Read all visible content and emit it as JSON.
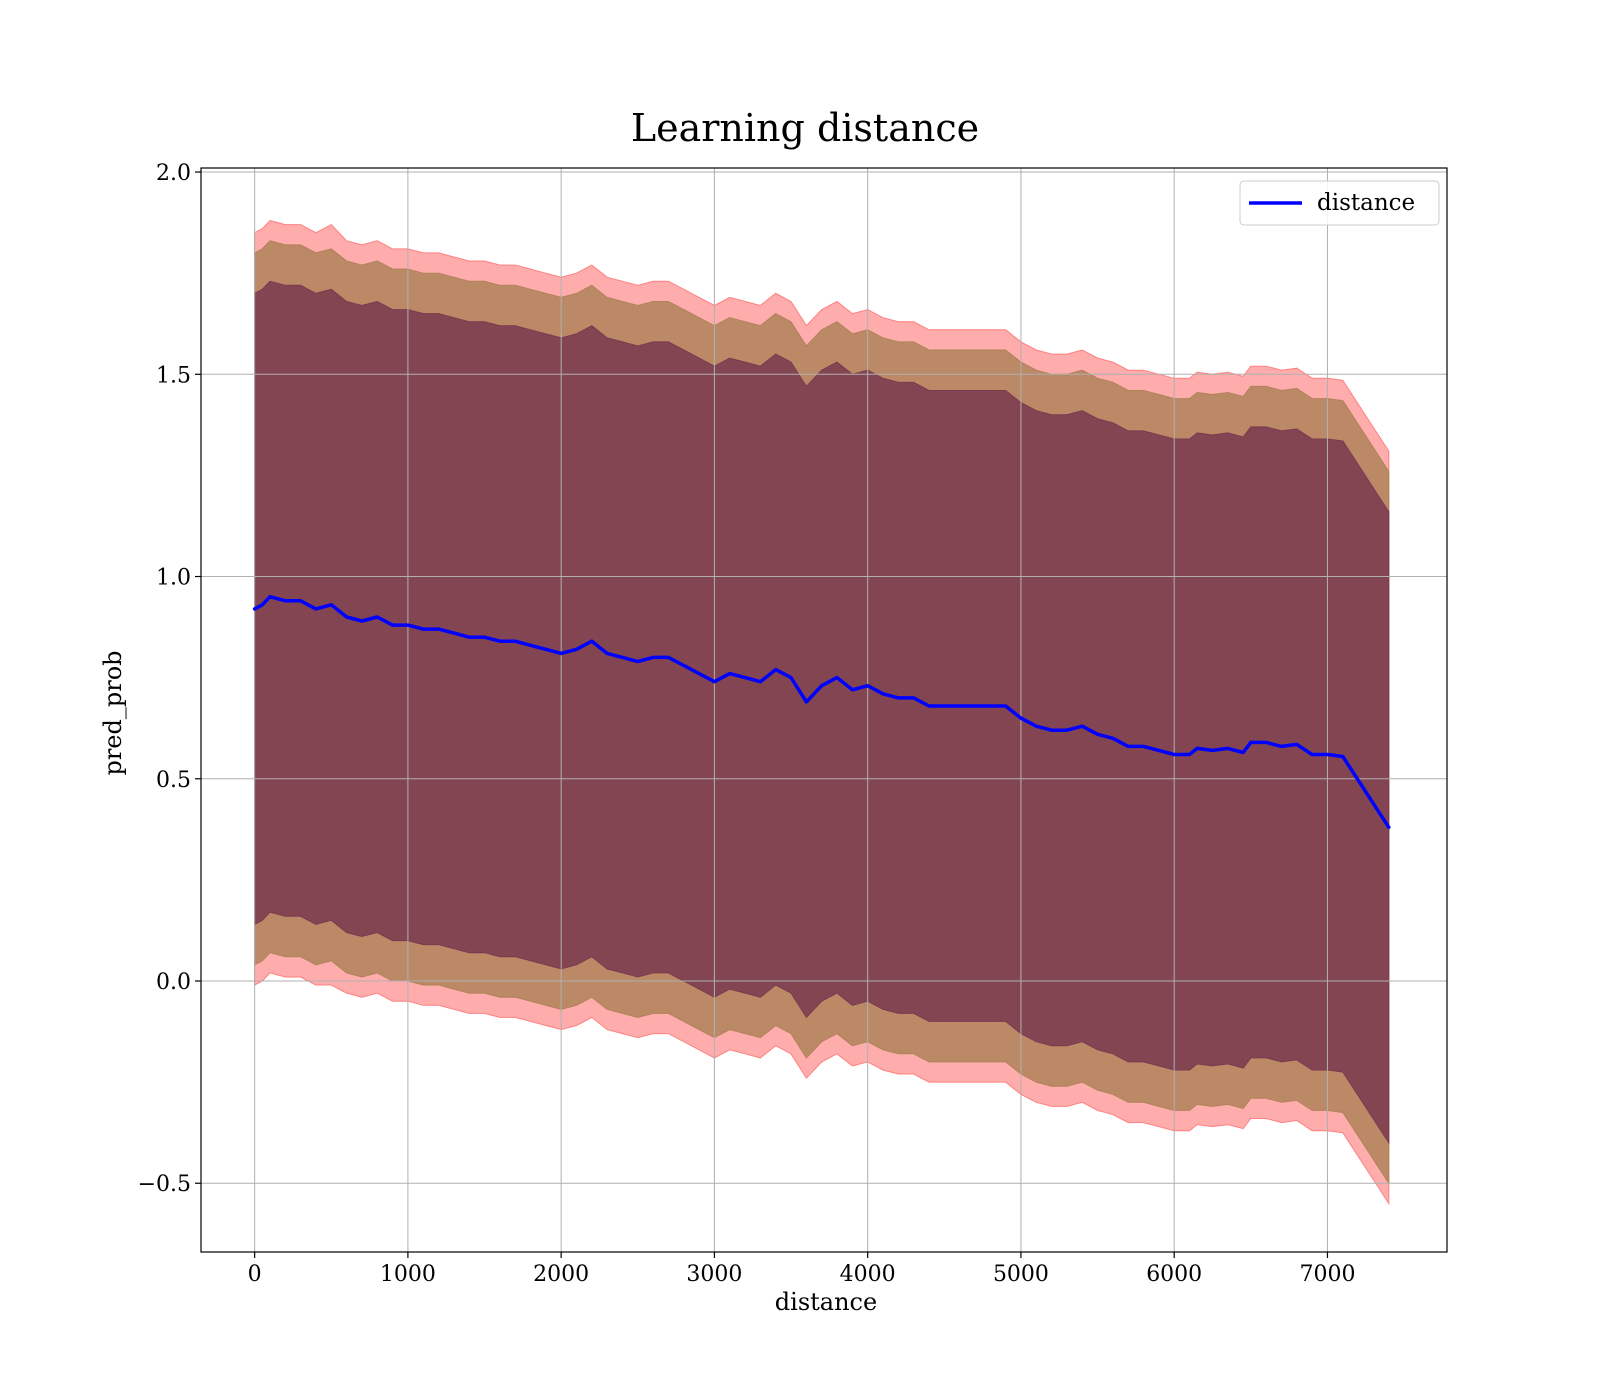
{
  "chart_data": {
    "type": "line",
    "title": "Learning distance",
    "xlabel": "distance",
    "ylabel": "pred_prob",
    "xlim": [
      -350,
      7780
    ],
    "ylim": [
      -0.67,
      2.01
    ],
    "xticks": [
      0,
      1000,
      2000,
      3000,
      4000,
      5000,
      6000,
      7000
    ],
    "yticks": [
      2.0,
      1.5,
      1.0,
      0.5,
      0.0,
      -0.5
    ],
    "xtick_labels": [
      "0",
      "1000",
      "2000",
      "3000",
      "4000",
      "5000",
      "6000",
      "7000"
    ],
    "ytick_labels": [
      "2.0",
      "1.5",
      "1.0",
      "0.5",
      "0.0",
      "−0.5"
    ],
    "grid": true,
    "legend": {
      "position": "top-right",
      "entries": [
        "distance"
      ]
    },
    "series": [
      {
        "name": "distance",
        "color": "#0000ff",
        "x": [
          0,
          50,
          100,
          200,
          300,
          400,
          500,
          600,
          700,
          800,
          900,
          1000,
          1100,
          1200,
          1300,
          1400,
          1500,
          1600,
          1700,
          1800,
          1900,
          2000,
          2100,
          2200,
          2300,
          2400,
          2500,
          2600,
          2700,
          2800,
          2900,
          3000,
          3100,
          3200,
          3300,
          3400,
          3500,
          3600,
          3700,
          3800,
          3900,
          4000,
          4100,
          4200,
          4300,
          4400,
          4500,
          4600,
          4700,
          4800,
          4900,
          5000,
          5100,
          5200,
          5300,
          5400,
          5500,
          5600,
          5700,
          5800,
          5900,
          6000,
          6100,
          6150,
          6250,
          6350,
          6450,
          6500,
          6600,
          6700,
          6800,
          6900,
          7000,
          7100,
          7400
        ],
        "y": [
          0.92,
          0.93,
          0.95,
          0.94,
          0.94,
          0.92,
          0.93,
          0.9,
          0.89,
          0.9,
          0.88,
          0.88,
          0.87,
          0.87,
          0.86,
          0.85,
          0.85,
          0.84,
          0.84,
          0.83,
          0.82,
          0.81,
          0.82,
          0.84,
          0.81,
          0.8,
          0.79,
          0.8,
          0.8,
          0.78,
          0.76,
          0.74,
          0.76,
          0.75,
          0.74,
          0.77,
          0.75,
          0.69,
          0.73,
          0.75,
          0.72,
          0.73,
          0.71,
          0.7,
          0.7,
          0.68,
          0.68,
          0.68,
          0.68,
          0.68,
          0.68,
          0.65,
          0.63,
          0.62,
          0.62,
          0.63,
          0.61,
          0.6,
          0.58,
          0.58,
          0.57,
          0.56,
          0.56,
          0.575,
          0.57,
          0.575,
          0.565,
          0.59,
          0.59,
          0.58,
          0.585,
          0.56,
          0.56,
          0.555,
          0.38
        ]
      }
    ],
    "bands": [
      {
        "color": "#ff8080",
        "upper_offsets": [
          0.93,
          0.93,
          0.93,
          0.93,
          0.93,
          0.93,
          0.94,
          0.93,
          0.93,
          0.93,
          0.93,
          0.93,
          0.93,
          0.93,
          0.93,
          0.93,
          0.93,
          0.93,
          0.93,
          0.93,
          0.93,
          0.93,
          0.93,
          0.93,
          0.93,
          0.93,
          0.93,
          0.93,
          0.93,
          0.93,
          0.93,
          0.93,
          0.93,
          0.93,
          0.93,
          0.93,
          0.93,
          0.93,
          0.93,
          0.93,
          0.93,
          0.93,
          0.93,
          0.93,
          0.93,
          0.93,
          0.93,
          0.93,
          0.93,
          0.93,
          0.93,
          0.93,
          0.93,
          0.93,
          0.93,
          0.93,
          0.93,
          0.93,
          0.93,
          0.93,
          0.93,
          0.93,
          0.93,
          0.93,
          0.93,
          0.93,
          0.93,
          0.93,
          0.93,
          0.93,
          0.93,
          0.93,
          0.93,
          0.93,
          0.93
        ]
      },
      {
        "color": "#b0825a",
        "upper_offsets": [
          0.88,
          0.88,
          0.88,
          0.88,
          0.88,
          0.88,
          0.88,
          0.88,
          0.88,
          0.88,
          0.88,
          0.88,
          0.88,
          0.88,
          0.88,
          0.88,
          0.88,
          0.88,
          0.88,
          0.88,
          0.88,
          0.88,
          0.88,
          0.88,
          0.88,
          0.88,
          0.88,
          0.88,
          0.88,
          0.88,
          0.88,
          0.88,
          0.88,
          0.88,
          0.88,
          0.88,
          0.88,
          0.88,
          0.88,
          0.88,
          0.88,
          0.88,
          0.88,
          0.88,
          0.88,
          0.88,
          0.88,
          0.88,
          0.88,
          0.88,
          0.88,
          0.88,
          0.88,
          0.88,
          0.88,
          0.88,
          0.88,
          0.88,
          0.88,
          0.88,
          0.88,
          0.88,
          0.88,
          0.88,
          0.88,
          0.88,
          0.88,
          0.88,
          0.88,
          0.88,
          0.88,
          0.88,
          0.88,
          0.88,
          0.88
        ]
      },
      {
        "color": "#7a3a50",
        "upper_offsets": [
          0.78,
          0.78,
          0.78,
          0.78,
          0.78,
          0.78,
          0.78,
          0.78,
          0.78,
          0.78,
          0.78,
          0.78,
          0.78,
          0.78,
          0.78,
          0.78,
          0.78,
          0.78,
          0.78,
          0.78,
          0.78,
          0.78,
          0.78,
          0.78,
          0.78,
          0.78,
          0.78,
          0.78,
          0.78,
          0.78,
          0.78,
          0.78,
          0.78,
          0.78,
          0.78,
          0.78,
          0.78,
          0.78,
          0.78,
          0.78,
          0.78,
          0.78,
          0.78,
          0.78,
          0.78,
          0.78,
          0.78,
          0.78,
          0.78,
          0.78,
          0.78,
          0.78,
          0.78,
          0.78,
          0.78,
          0.78,
          0.78,
          0.78,
          0.78,
          0.78,
          0.78,
          0.78,
          0.78,
          0.78,
          0.78,
          0.78,
          0.78,
          0.78,
          0.78,
          0.78,
          0.78,
          0.78,
          0.78,
          0.78,
          0.78
        ]
      }
    ]
  }
}
